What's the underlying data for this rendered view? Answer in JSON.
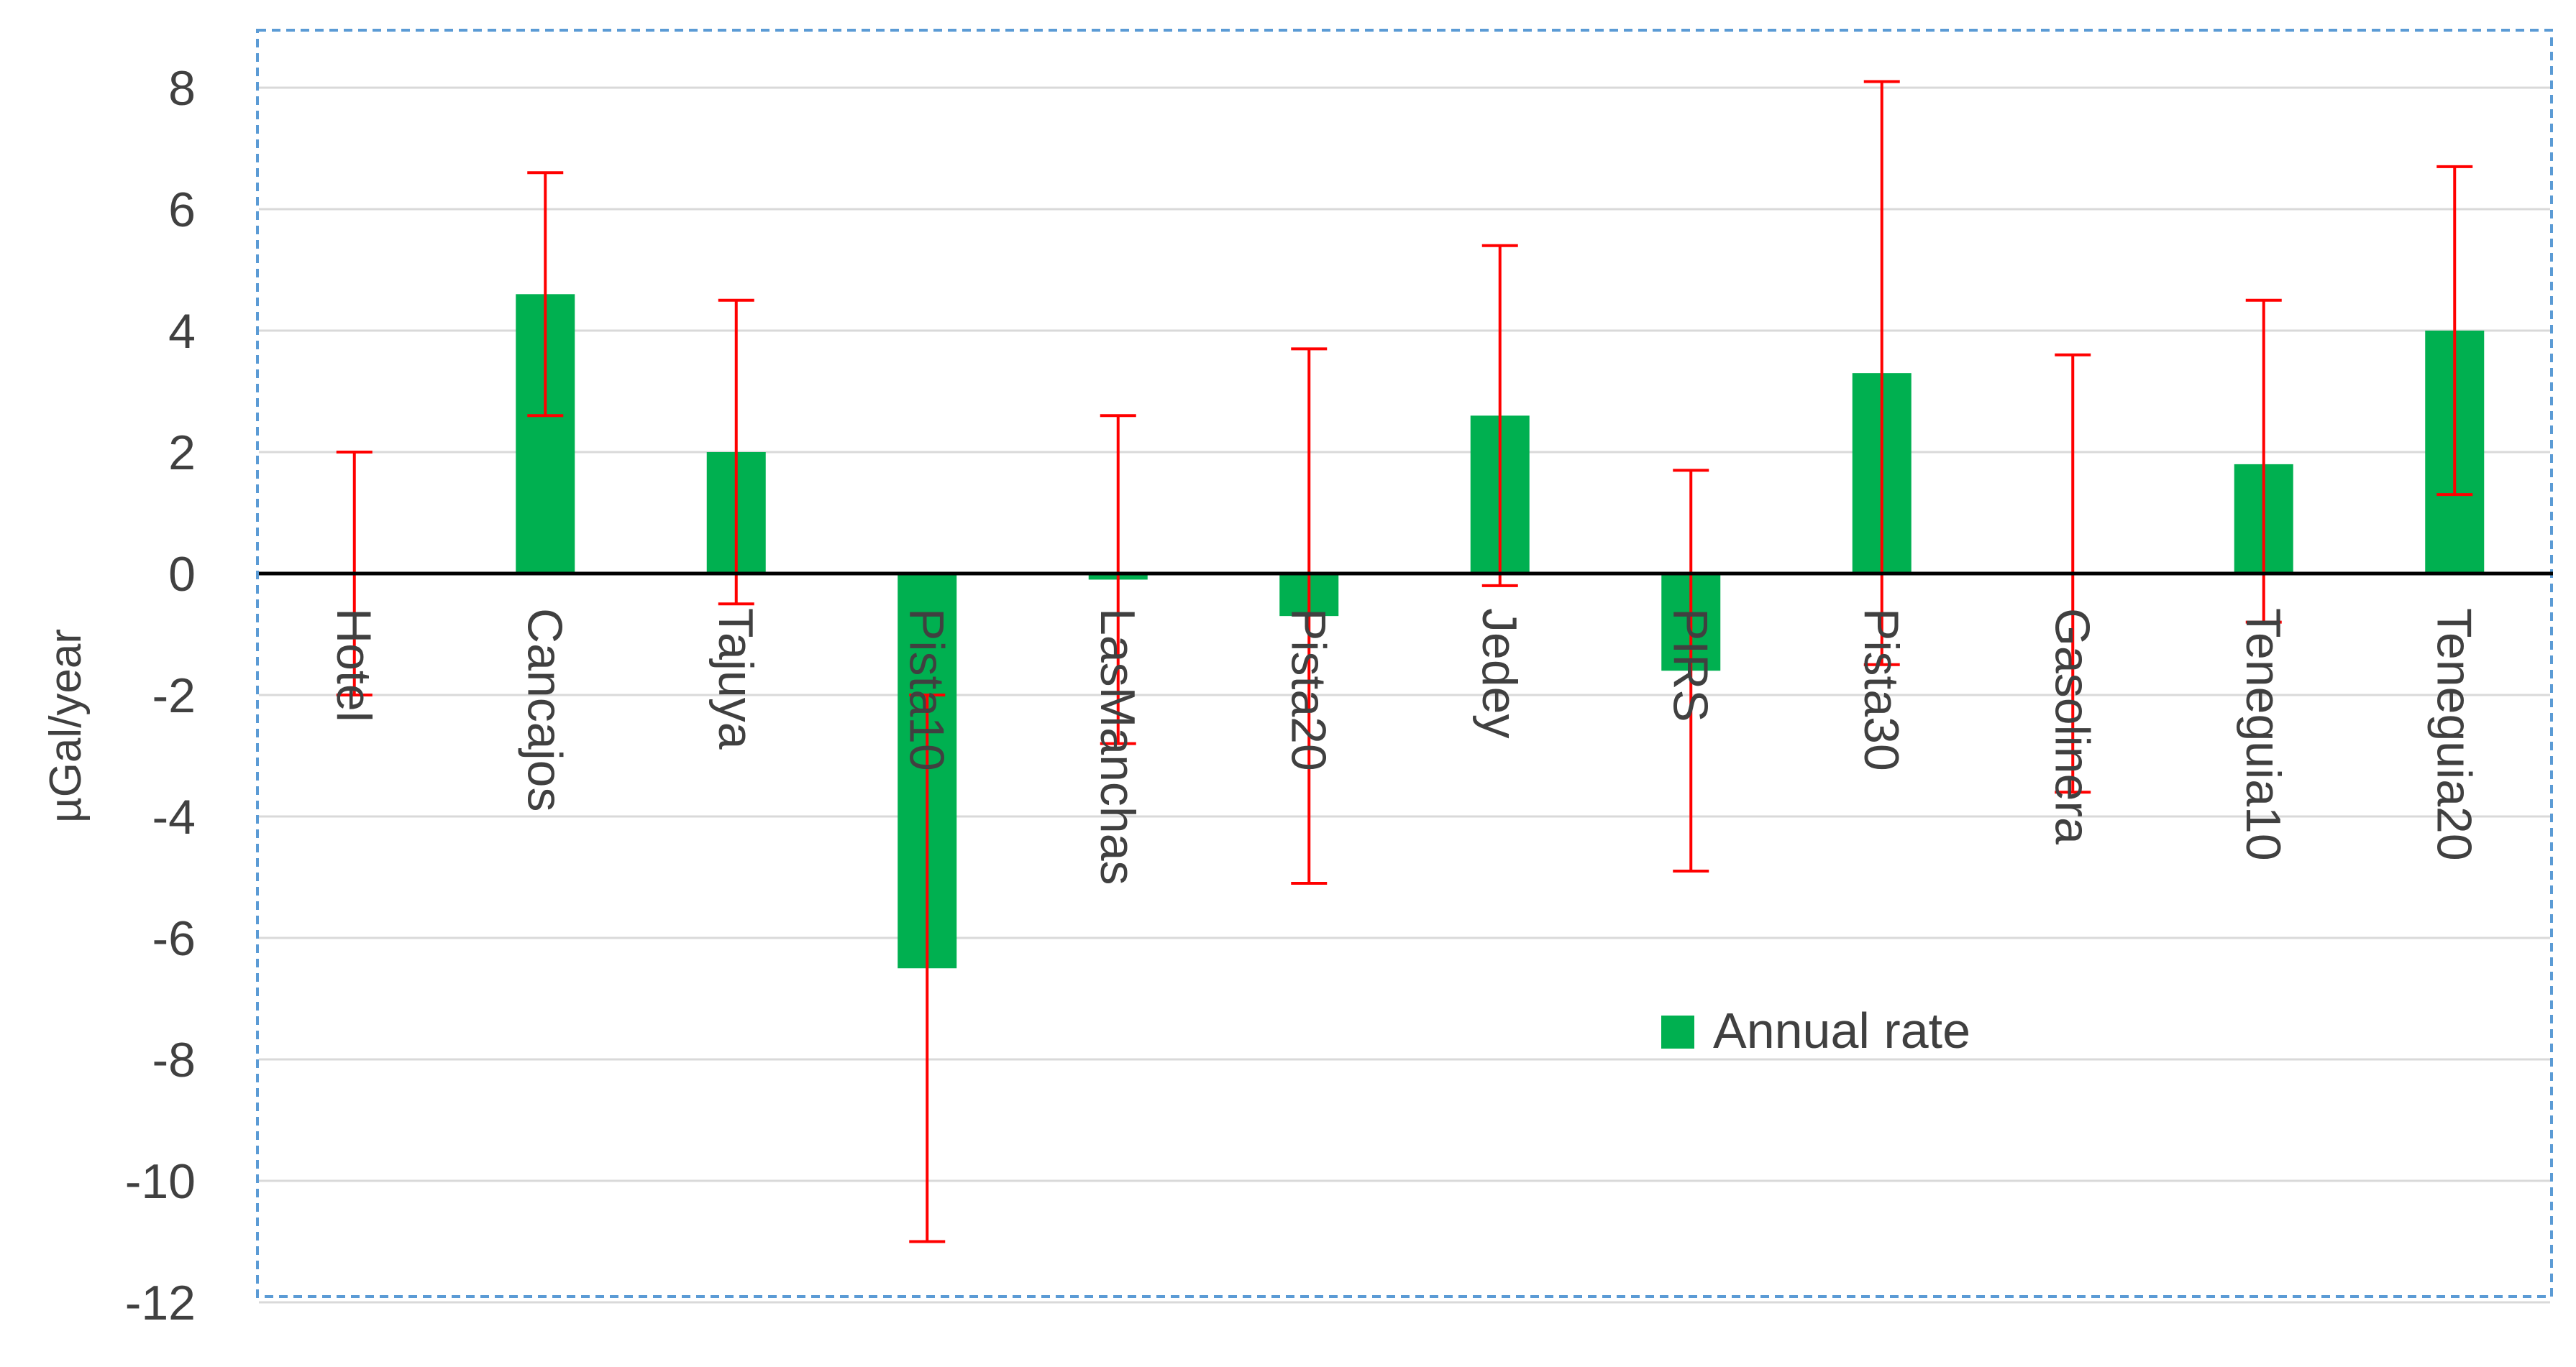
{
  "chart_data": {
    "type": "bar",
    "categories": [
      "Hotel",
      "Cancajos",
      "Tajuya",
      "Pista10",
      "LasManchas",
      "Pista20",
      "Jedey",
      "PIRS",
      "Pista30",
      "Gasolinera",
      "Teneguia10",
      "Teneguia20"
    ],
    "series": [
      {
        "name": "Annual rate",
        "values": [
          0.0,
          4.6,
          2.0,
          -6.5,
          -0.1,
          -0.7,
          2.6,
          -1.6,
          3.3,
          0.0,
          1.8,
          4.0
        ],
        "error_low": [
          -2.0,
          2.6,
          -0.5,
          -11.0,
          -2.8,
          -5.1,
          -0.2,
          -4.9,
          -1.5,
          -3.6,
          -0.8,
          1.3
        ],
        "error_high": [
          2.0,
          6.6,
          4.5,
          -2.0,
          2.6,
          3.7,
          5.4,
          1.7,
          8.1,
          3.6,
          4.5,
          6.7
        ]
      }
    ],
    "ylabel": "µGal/year",
    "xlabel": "",
    "ylim": [
      -12,
      8
    ],
    "yticks": [
      8,
      6,
      4,
      2,
      0,
      -2,
      -4,
      -6,
      -8,
      -10,
      -12
    ],
    "grid": true,
    "legend": "inside-lower-right",
    "colors": {
      "bar": "#00b050",
      "error_bar": "#ff0000",
      "grid": "#d9d9d9",
      "zero_line": "#000000",
      "frame": "#5b9bd5",
      "text": "#404040"
    }
  }
}
